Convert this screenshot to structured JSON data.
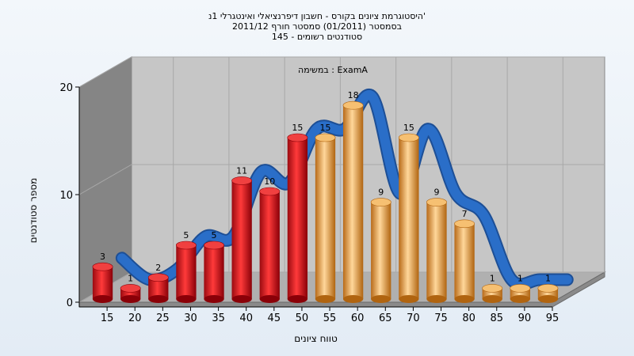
{
  "header": {
    "line1": "היסטוגרמת ציונים בקורס - חשבון דיפרנציאלי ואינטגרלי 1נ'",
    "line2": "בסמסטר  (01/2011)  סמסטר חורף 2011/12",
    "line3": "סטודנטים רשומים - 145"
  },
  "chart_data": {
    "type": "bar",
    "title": "היסטוגרמת ציונים בקורס - חשבון דיפרנציאלי ואינטגרלי 1נ'",
    "annotation": "במשימה : ExamA",
    "xlabel": "טווח ציונים",
    "ylabel": "מספר סטודנטים",
    "categories": [
      "15",
      "20",
      "25",
      "30",
      "35",
      "40",
      "45",
      "50",
      "55",
      "60",
      "65",
      "70",
      "75",
      "80",
      "85",
      "90",
      "95"
    ],
    "values": [
      3,
      1,
      2,
      5,
      5,
      11,
      10,
      15,
      15,
      18,
      9,
      15,
      9,
      7,
      1,
      1,
      1
    ],
    "ylim": [
      0,
      20
    ],
    "yticks": [
      0,
      10,
      20
    ],
    "bar_colors": {
      "fail": "#e0141c",
      "pass": "#e8a040"
    },
    "pass_from_index": 8,
    "curve_color": "#2a6ec8",
    "grid": true
  }
}
